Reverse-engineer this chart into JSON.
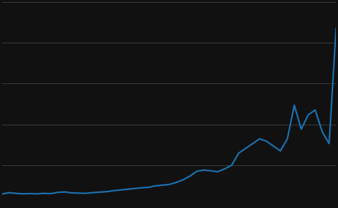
{
  "years": [
    1966,
    1967,
    1968,
    1969,
    1970,
    1971,
    1972,
    1973,
    1974,
    1975,
    1976,
    1977,
    1978,
    1979,
    1980,
    1981,
    1982,
    1983,
    1984,
    1985,
    1986,
    1987,
    1988,
    1989,
    1990,
    1991,
    1992,
    1993,
    1994,
    1995,
    1996,
    1997,
    1998,
    1999,
    2000,
    2001,
    2002,
    2003,
    2004,
    2005,
    2006,
    2007,
    2008,
    2009,
    2010,
    2011,
    2012,
    2013,
    2014
  ],
  "values": [
    500,
    560,
    530,
    510,
    520,
    510,
    530,
    520,
    570,
    590,
    550,
    540,
    530,
    560,
    580,
    600,
    640,
    670,
    700,
    730,
    760,
    780,
    840,
    870,
    900,
    980,
    1090,
    1250,
    1450,
    1500,
    1470,
    1430,
    1550,
    1700,
    2200,
    2400,
    2600,
    2800,
    2700,
    2500,
    2300,
    2800,
    4200,
    3200,
    3800,
    4000,
    3100,
    2600,
    7400
  ],
  "line_color": "#1a72b0",
  "background_color": "#111111",
  "grid_color": "#444444",
  "ylim": [
    0,
    8500
  ],
  "xlim": [
    1966,
    2014
  ],
  "ytick_positions": [
    0,
    1700,
    3400,
    5100,
    6800,
    8500
  ],
  "line_width": 1.6,
  "figsize": [
    4.91,
    3.02
  ],
  "dpi": 100
}
